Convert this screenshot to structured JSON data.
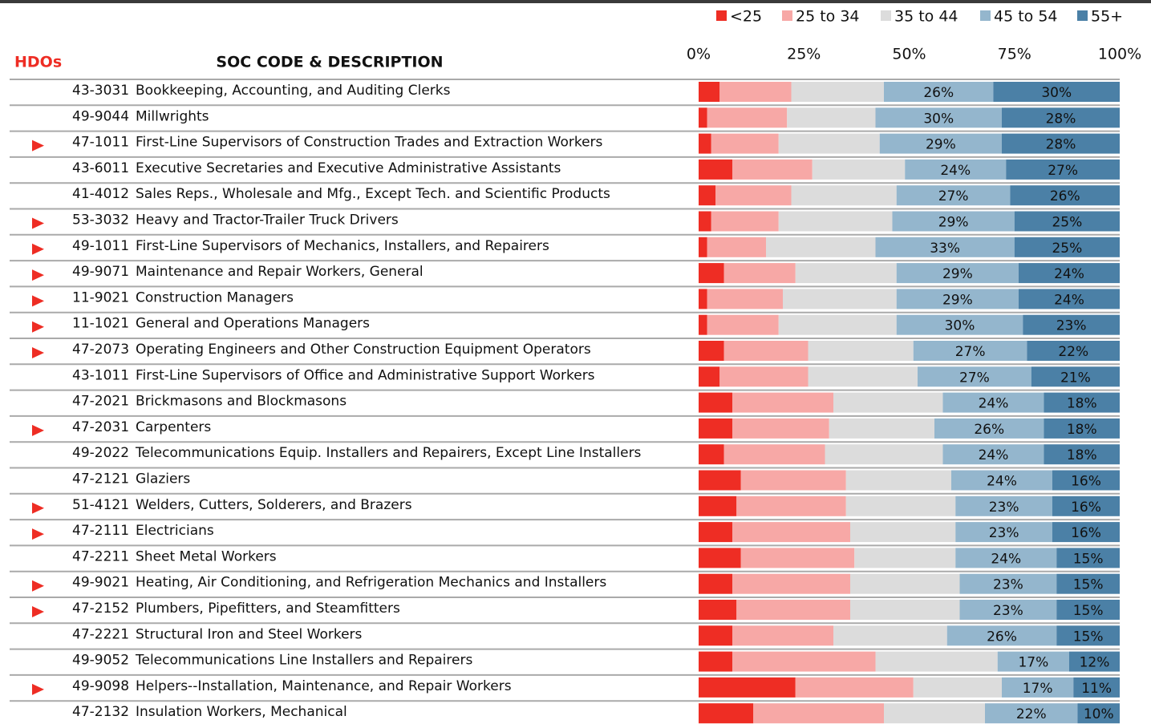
{
  "chart_data": {
    "type": "bar",
    "orientation": "horizontal",
    "stacked": true,
    "hdo_header": "HDOs",
    "label_header": "SOC CODE & DESCRIPTION",
    "categories": [
      "43-3031",
      "49-9044",
      "47-1011",
      "43-6011",
      "41-4012",
      "53-3032",
      "49-1011",
      "49-9071",
      "11-9021",
      "11-1021",
      "47-2073",
      "43-1011",
      "47-2021",
      "47-2031",
      "49-2022",
      "47-2121",
      "51-4121",
      "47-2111",
      "47-2211",
      "49-9021",
      "47-2152",
      "47-2221",
      "49-9052",
      "49-9098",
      "47-2132"
    ],
    "descriptions": [
      "Bookkeeping, Accounting, and Auditing Clerks",
      "Millwrights",
      "First-Line Supervisors of Construction Trades and Extraction Workers",
      "Executive Secretaries and Executive Administrative Assistants",
      "Sales Reps., Wholesale and Mfg., Except Tech. and Scientific Products",
      "Heavy and Tractor-Trailer Truck Drivers",
      "First-Line Supervisors of Mechanics, Installers, and Repairers",
      "Maintenance and Repair Workers, General",
      "Construction Managers",
      "General and Operations Managers",
      "Operating Engineers and Other Construction Equipment Operators",
      "First-Line Supervisors of Office and Administrative Support Workers",
      "Brickmasons and Blockmasons",
      "Carpenters",
      "Telecommunications Equip. Installers and Repairers, Except Line Installers",
      "Glaziers",
      "Welders, Cutters, Solderers, and Brazers",
      "Electricians",
      "Sheet Metal Workers",
      "Heating, Air Conditioning, and Refrigeration Mechanics and Installers",
      "Plumbers, Pipefitters, and Steamfitters",
      "Structural Iron and Steel Workers",
      "Telecommunications Line Installers and Repairers",
      "Helpers--Installation, Maintenance, and Repair Workers",
      "Insulation Workers, Mechanical"
    ],
    "hdo": [
      false,
      false,
      true,
      false,
      false,
      true,
      true,
      true,
      true,
      true,
      true,
      false,
      false,
      true,
      false,
      false,
      true,
      true,
      false,
      true,
      true,
      false,
      false,
      true,
      false
    ],
    "hdo_color": "#ee2d24",
    "xlim": [
      0,
      100
    ],
    "xticks": [
      {
        "value": 0,
        "label": "0%"
      },
      {
        "value": 25,
        "label": "25%"
      },
      {
        "value": 50,
        "label": "50%"
      },
      {
        "value": 75,
        "label": "75%"
      },
      {
        "value": 100,
        "label": "100%"
      }
    ],
    "series": [
      {
        "name": "<25",
        "color": "#ee2d24",
        "values": [
          5,
          2,
          3,
          8,
          4,
          3,
          2,
          6,
          2,
          2,
          6,
          5,
          8,
          8,
          6,
          10,
          9,
          8,
          10,
          8,
          9,
          8,
          8,
          23,
          13
        ]
      },
      {
        "name": "25 to 34",
        "color": "#f7a8a6",
        "values": [
          17,
          19,
          16,
          19,
          18,
          16,
          14,
          17,
          18,
          17,
          20,
          21,
          24,
          23,
          24,
          25,
          26,
          28,
          27,
          28,
          27,
          24,
          34,
          28,
          31
        ]
      },
      {
        "name": "35 to 44",
        "color": "#dcdcdc",
        "values": [
          22,
          21,
          24,
          22,
          25,
          27,
          26,
          24,
          27,
          28,
          25,
          26,
          26,
          25,
          28,
          25,
          26,
          25,
          24,
          26,
          26,
          27,
          29,
          21,
          24
        ]
      },
      {
        "name": "45 to 54",
        "color": "#94b6cd",
        "values": [
          26,
          30,
          29,
          24,
          27,
          29,
          33,
          29,
          29,
          30,
          27,
          27,
          24,
          26,
          24,
          24,
          23,
          23,
          24,
          23,
          23,
          26,
          17,
          17,
          22
        ],
        "value_labels": [
          "26%",
          "30%",
          "29%",
          "24%",
          "27%",
          "29%",
          "33%",
          "29%",
          "29%",
          "30%",
          "27%",
          "27%",
          "24%",
          "26%",
          "24%",
          "24%",
          "23%",
          "23%",
          "24%",
          "23%",
          "23%",
          "26%",
          "17%",
          "17%",
          "22%"
        ]
      },
      {
        "name": "55+",
        "color": "#4b80a6",
        "values": [
          30,
          28,
          28,
          27,
          26,
          25,
          25,
          24,
          24,
          23,
          22,
          21,
          18,
          18,
          18,
          16,
          16,
          16,
          15,
          15,
          15,
          15,
          12,
          11,
          10
        ],
        "value_labels": [
          "30%",
          "28%",
          "28%",
          "27%",
          "26%",
          "25%",
          "25%",
          "24%",
          "24%",
          "23%",
          "22%",
          "21%",
          "18%",
          "18%",
          "18%",
          "16%",
          "16%",
          "16%",
          "15%",
          "15%",
          "15%",
          "15%",
          "12%",
          "11%",
          "10%"
        ]
      }
    ]
  }
}
